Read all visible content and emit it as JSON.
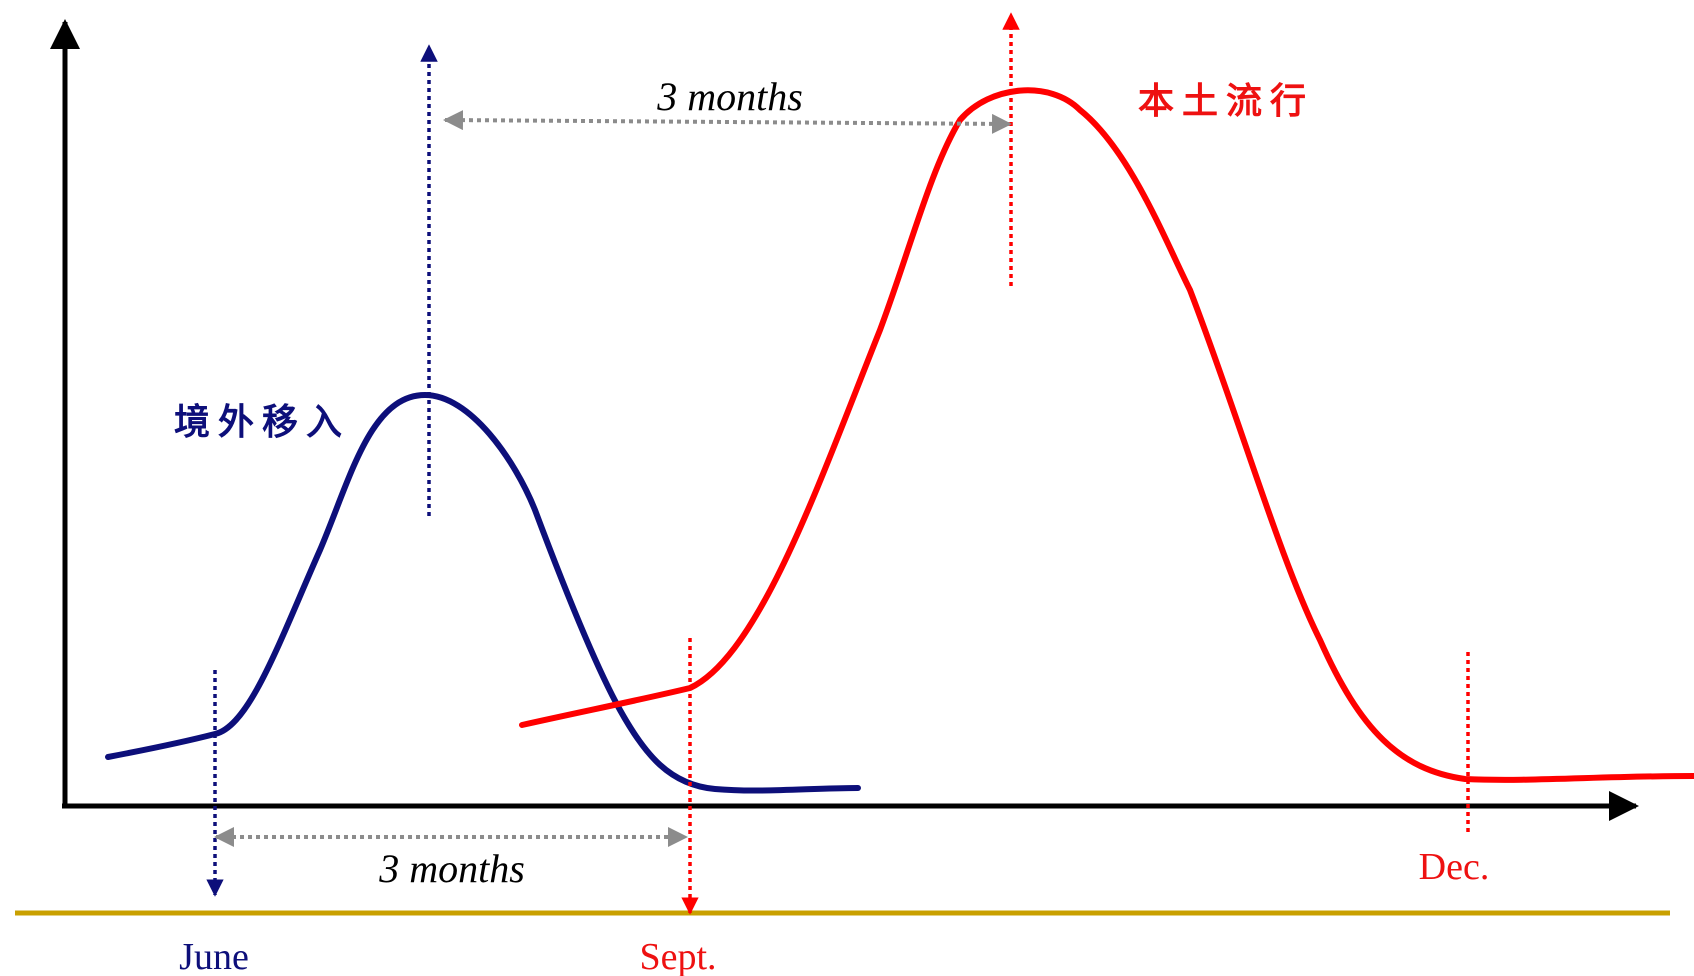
{
  "labels": {
    "imported": "境外移入",
    "local_epidemic": "本土流行",
    "interval_top": "3 months",
    "interval_bottom": "3 months",
    "month_june": "June",
    "month_sept": "Sept.",
    "month_dec": "Dec."
  },
  "colors": {
    "axis": "#000000",
    "imported_curve": "#0d0f7a",
    "local_curve": "#ff0000",
    "interval_arrow": "#8c8c8c",
    "timeline": "#c9a000",
    "june_label": "#0d0f7a",
    "month_red_label": "#ee1111"
  }
}
